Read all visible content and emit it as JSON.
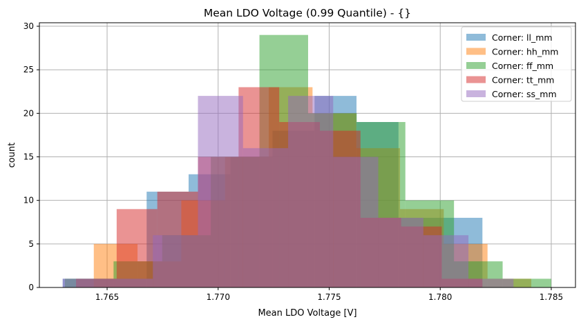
{
  "chart_data": {
    "type": "histogram",
    "title": "Mean LDO Voltage (0.99 Quantile) - {}",
    "xlabel": "Mean LDO Voltage [V]",
    "ylabel": "count",
    "xlim": [
      1.76195,
      1.78609
    ],
    "ylim": [
      0,
      30.4
    ],
    "xticks": [
      1.765,
      1.77,
      1.775,
      1.78,
      1.785
    ],
    "xtick_labels": [
      "1.765",
      "1.770",
      "1.775",
      "1.780",
      "1.785"
    ],
    "yticks": [
      0,
      5,
      10,
      15,
      20,
      25,
      30
    ],
    "ytick_labels": [
      "0",
      "5",
      "10",
      "15",
      "20",
      "25",
      "30"
    ],
    "grid": true,
    "legend_position": "top-right",
    "alpha": 0.5,
    "series": [
      {
        "name": "Corner: ll_mm",
        "color": "#1f77b4",
        "bin_min": 1.763,
        "bin_max": 1.7819,
        "counts": [
          1,
          1,
          11,
          13,
          15,
          18,
          22,
          19,
          8,
          8
        ]
      },
      {
        "name": "Corner: hh_mm",
        "color": "#ff7f0e",
        "bin_min": 1.7644,
        "bin_max": 1.7841,
        "counts": [
          5,
          3,
          10,
          15,
          23,
          20,
          16,
          9,
          5,
          1
        ]
      },
      {
        "name": "Corner: ff_mm",
        "color": "#2ca02c",
        "bin_min": 1.7631,
        "bin_max": 1.785,
        "counts": [
          1,
          3,
          6,
          15,
          29,
          20,
          19,
          10,
          3,
          1
        ]
      },
      {
        "name": "Corner: tt_mm",
        "color": "#d62728",
        "bin_min": 1.7636,
        "bin_max": 1.7819,
        "counts": [
          1,
          9,
          11,
          15,
          23,
          19,
          18,
          8,
          7,
          1
        ]
      },
      {
        "name": "Corner: ss_mm",
        "color": "#9467bd",
        "bin_min": 1.763,
        "bin_max": 1.7833,
        "counts": [
          1,
          1,
          6,
          22,
          16,
          22,
          15,
          8,
          6,
          1
        ]
      }
    ]
  }
}
